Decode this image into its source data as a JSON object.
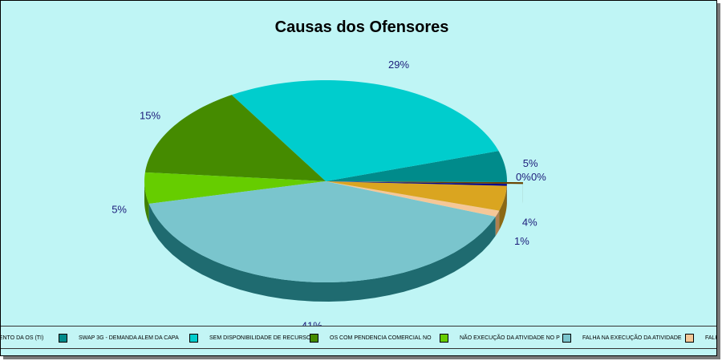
{
  "chart_data": {
    "type": "pie",
    "style": "3d",
    "title": "Causas dos Ofensores",
    "slices": [
      {
        "label": "...ENTO DA OS (TI)",
        "value": 0.3,
        "pct_label": "0%",
        "color": "#6b4400",
        "side": "#4a2f00",
        "exploded": true
      },
      {
        "label": "SWAP 3G - DEMANDA ALEM DA CAPA",
        "value": 5,
        "pct_label": "5%",
        "color": "#008b8b",
        "side": "#005c5c"
      },
      {
        "label": "SEM DISPONIBILIDADE DE RECURSO",
        "value": 29,
        "pct_label": "29%",
        "color": "#00cdcd",
        "side": "#008b8b"
      },
      {
        "label": "OS COM PENDENCIA COMERCIAL NO",
        "value": 15,
        "pct_label": "15%",
        "color": "#458b00",
        "side": "#2e5c00"
      },
      {
        "label": "NÃO EXECUÇÃO DA ATIVIDADE NO P",
        "value": 5,
        "pct_label": "5%",
        "color": "#66cd00",
        "side": "#3f8000"
      },
      {
        "label": "FALHA NA EXECUÇÃO DA ATIVIDADE",
        "value": 41,
        "pct_label": "41%",
        "color": "#7ac5cd",
        "side": "#1f6b70"
      },
      {
        "label": "FALHA F...",
        "value": 1,
        "pct_label": "1%",
        "color": "#f5c797",
        "side": "#b08050"
      },
      {
        "label": "",
        "value": 4,
        "pct_label": "4%",
        "color": "#daa520",
        "side": "#8b6914"
      },
      {
        "label": "",
        "value": 0.3,
        "pct_label": "0%",
        "color": "#00008b",
        "side": "#00005c"
      }
    ],
    "legend_placement": "bottom"
  }
}
